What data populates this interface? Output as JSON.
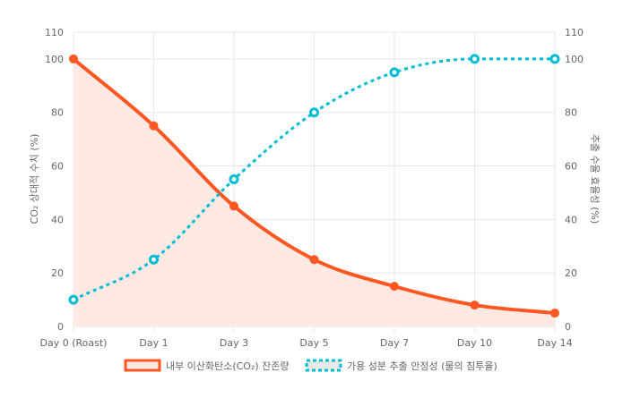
{
  "chart_data": {
    "type": "line",
    "categories": [
      "Day 0 (Roast)",
      "Day 1",
      "Day 3",
      "Day 5",
      "Day 7",
      "Day 10",
      "Day 14"
    ],
    "series": [
      {
        "name": "내부 이산화탄소(CO₂) 잔존량",
        "axis": "left",
        "values": [
          100,
          75,
          45,
          25,
          15,
          8,
          5
        ],
        "color": "#ff5722",
        "fill": "#ffe9e2",
        "line_style": "solid"
      },
      {
        "name": "가용 성분 추출 안정성 (물의 침투율)",
        "axis": "right",
        "values": [
          10,
          25,
          55,
          80,
          95,
          100,
          100
        ],
        "color": "#00bcd4",
        "line_style": "dashed"
      }
    ],
    "y_left": {
      "label": "CO₂ 상대적 수치 (%)",
      "ticks": [
        0,
        20,
        40,
        60,
        80,
        100,
        110
      ],
      "range": [
        0,
        110
      ]
    },
    "y_right": {
      "label": "추출 수율 효율성 (%)",
      "ticks": [
        0,
        20,
        40,
        60,
        80,
        100,
        110
      ],
      "range": [
        0,
        110
      ]
    },
    "grid": true,
    "legend": "bottom"
  }
}
